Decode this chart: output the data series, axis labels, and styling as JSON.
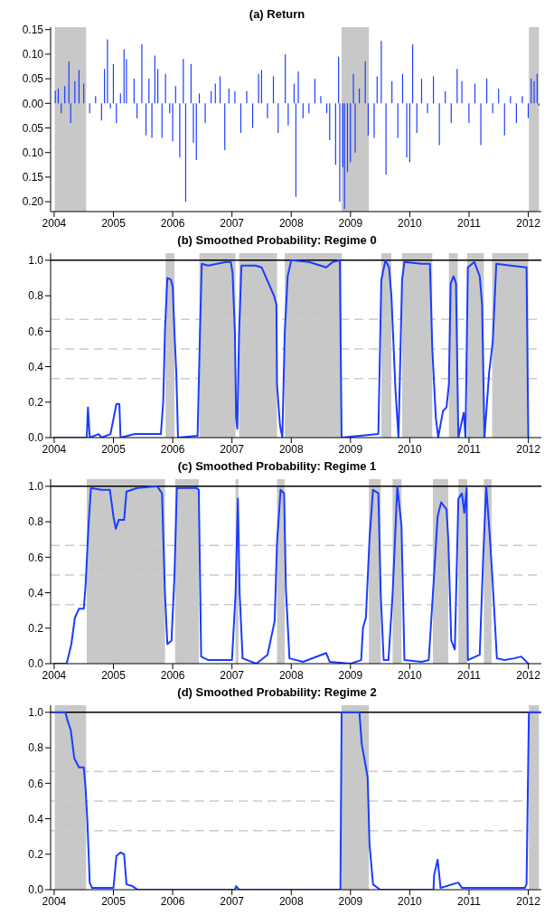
{
  "chart_data": [
    {
      "type": "bar",
      "title": "(a) Return",
      "color": "#1a3cff",
      "x": [
        2004.02,
        2004.07,
        2004.12,
        2004.18,
        2004.25,
        2004.28,
        2004.35,
        2004.42,
        2004.5,
        2004.6,
        2004.7,
        2004.72,
        2004.8,
        2004.85,
        2004.9,
        2004.95,
        2005.0,
        2005.05,
        2005.12,
        2005.18,
        2005.22,
        2005.3,
        2005.35,
        2005.4,
        2005.48,
        2005.55,
        2005.6,
        2005.65,
        2005.7,
        2005.75,
        2005.82,
        2005.88,
        2005.95,
        2006.0,
        2006.05,
        2006.12,
        2006.18,
        2006.22,
        2006.27,
        2006.31,
        2006.35,
        2006.4,
        2006.45,
        2006.55,
        2006.65,
        2006.72,
        2006.8,
        2006.88,
        2006.95,
        2007.05,
        2007.15,
        2007.25,
        2007.35,
        2007.45,
        2007.5,
        2007.6,
        2007.7,
        2007.78,
        2007.9,
        2007.95,
        2008.05,
        2008.08,
        2008.12,
        2008.2,
        2008.3,
        2008.4,
        2008.5,
        2008.6,
        2008.65,
        2008.75,
        2008.8,
        2008.82,
        2008.87,
        2008.9,
        2008.95,
        2009.0,
        2009.05,
        2009.08,
        2009.15,
        2009.25,
        2009.3,
        2009.4,
        2009.45,
        2009.52,
        2009.6,
        2009.7,
        2009.8,
        2009.88,
        2009.95,
        2010.0,
        2010.05,
        2010.12,
        2010.2,
        2010.3,
        2010.4,
        2010.5,
        2010.6,
        2010.7,
        2010.8,
        2010.88,
        2011.0,
        2011.1,
        2011.2,
        2011.3,
        2011.4,
        2011.5,
        2011.6,
        2011.7,
        2011.8,
        2011.9,
        2012.0,
        2012.05,
        2012.1,
        2012.15,
        2012.18
      ],
      "values": [
        0.026,
        0.03,
        -0.02,
        0.035,
        0.085,
        -0.04,
        0.045,
        0.068,
        0.04,
        -0.02,
        0.015,
        null,
        -0.035,
        0.07,
        0.13,
        -0.01,
        0.08,
        -0.04,
        0.02,
        0.11,
        0.09,
        null,
        0.05,
        -0.03,
        0.12,
        -0.065,
        0.05,
        -0.07,
        0.097,
        0.07,
        -0.07,
        0.06,
        -0.02,
        -0.077,
        0.035,
        -0.11,
        0.09,
        -0.2,
        null,
        0.08,
        -0.08,
        -0.115,
        0.02,
        -0.04,
        0.025,
        0.04,
        0.055,
        -0.095,
        0.03,
        0.025,
        -0.06,
        0.025,
        -0.05,
        0.06,
        0.068,
        -0.03,
        0.055,
        -0.06,
        0.1,
        -0.045,
        0.04,
        -0.19,
        0.065,
        -0.03,
        -0.02,
        0.05,
        0.015,
        -0.02,
        -0.075,
        -0.125,
        0.095,
        -0.2,
        -0.13,
        -0.215,
        -0.14,
        -0.12,
        0.06,
        -0.1,
        0.03,
        0.085,
        -0.065,
        -0.07,
        0.055,
        0.127,
        -0.145,
        0.045,
        -0.07,
        0.06,
        -0.11,
        -0.12,
        0.12,
        -0.06,
        0.05,
        -0.02,
        0.055,
        -0.085,
        0.025,
        -0.04,
        0.07,
        0.045,
        -0.04,
        0.04,
        -0.085,
        0.05,
        -0.02,
        0.03,
        -0.065,
        0.015,
        -0.04,
        0.015,
        -0.03,
        0.05,
        0.045,
        0.06,
        -0.005
      ],
      "xlim": [
        2003.94,
        2012.22
      ],
      "xticks": [
        2004,
        2005,
        2006,
        2007,
        2008,
        2009,
        2010,
        2011,
        2012
      ],
      "ylim": [
        -0.22,
        0.155
      ],
      "yticks": [
        {
          "value": 0.15,
          "label": "0.15"
        },
        {
          "value": 0.1,
          "label": "0.10"
        },
        {
          "value": 0.05,
          "label": "0.05"
        },
        {
          "value": 0,
          "label": "0.00"
        },
        {
          "value": -0.05,
          "label": "0.05"
        },
        {
          "value": -0.1,
          "label": "0.10"
        },
        {
          "value": -0.15,
          "label": "0.15"
        },
        {
          "value": -0.2,
          "label": "0.20"
        }
      ],
      "bands": [
        {
          "axis": "x",
          "from": 2004.01,
          "to": 2004.54,
          "color": "#c8c8c8"
        },
        {
          "axis": "x",
          "from": 2008.85,
          "to": 2009.31,
          "color": "#c8c8c8"
        },
        {
          "axis": "x",
          "from": 2012.01,
          "to": 2012.18,
          "color": "#c8c8c8"
        }
      ]
    },
    {
      "type": "line",
      "title": "(b) Smoothed Probability: Regime 0",
      "color": "#1a3cff",
      "x": [
        2004.0,
        2004.55,
        2004.57,
        2004.6,
        2004.75,
        2004.8,
        2004.95,
        2005.05,
        2005.1,
        2005.12,
        2005.36,
        2005.8,
        2005.84,
        2005.87,
        2005.91,
        2005.97,
        2006.0,
        2006.03,
        2006.06,
        2006.09,
        2006.42,
        2006.46,
        2006.49,
        2006.6,
        2006.9,
        2006.98,
        2007.01,
        2007.05,
        2007.07,
        2007.09,
        2007.12,
        2007.16,
        2007.4,
        2007.5,
        2007.71,
        2007.75,
        2007.76,
        2007.81,
        2007.85,
        2007.89,
        2007.94,
        2008.0,
        2008.3,
        2008.59,
        2008.7,
        2008.82,
        2008.85,
        2009.47,
        2009.52,
        2009.59,
        2009.65,
        2009.69,
        2009.76,
        2009.81,
        2009.87,
        2009.91,
        2010.2,
        2010.34,
        2010.38,
        2010.44,
        2010.48,
        2010.56,
        2010.62,
        2010.66,
        2010.69,
        2010.74,
        2010.78,
        2010.82,
        2010.91,
        2010.94,
        2010.98,
        2011.09,
        2011.18,
        2011.22,
        2011.26,
        2011.34,
        2011.4,
        2011.46,
        2011.7,
        2011.97,
        2012.0
      ],
      "values": [
        0,
        0,
        0.17,
        0,
        0.02,
        0,
        0.02,
        0.19,
        0.19,
        0,
        0.02,
        0.02,
        0.2,
        0.61,
        0.9,
        0.89,
        0.85,
        0.59,
        0.37,
        0,
        0.01,
        0.59,
        0.98,
        0.97,
        0.99,
        0.99,
        0.93,
        0.59,
        0.11,
        0.05,
        0.59,
        0.97,
        0.97,
        0.96,
        0.8,
        0.75,
        0.3,
        0.07,
        0,
        0.59,
        0.91,
        1.0,
        0.99,
        0.96,
        0.99,
        1.0,
        0,
        0.02,
        0.89,
        1.0,
        0.96,
        0.8,
        0.26,
        0,
        0.89,
        0.99,
        0.98,
        0.98,
        0.5,
        0.11,
        0,
        0.15,
        0.17,
        0.3,
        0.87,
        0.91,
        0.87,
        0,
        0.14,
        0,
        0.96,
        0.99,
        0.91,
        0.75,
        0,
        0.37,
        0.54,
        0.98,
        0.97,
        0.96,
        0
      ],
      "xlim": [
        2003.94,
        2012.22
      ],
      "xticks": [
        2004,
        2005,
        2006,
        2007,
        2008,
        2009,
        2010,
        2011,
        2012
      ],
      "ylim": [
        0,
        1.04
      ],
      "yticks": [
        {
          "value": 0,
          "label": "0.0"
        },
        {
          "value": 0.2,
          "label": "0.2"
        },
        {
          "value": 0.4,
          "label": "0.4"
        },
        {
          "value": 0.6,
          "label": "0.6"
        },
        {
          "value": 0.8,
          "label": "0.8"
        },
        {
          "value": 1,
          "label": "1.0"
        }
      ],
      "ref_lines": [
        {
          "axis": "y",
          "value": 1,
          "color": "#000000",
          "line_style": "solid"
        },
        {
          "axis": "y",
          "value": 0.667,
          "color": "#cccccc",
          "line_style": "dashed"
        },
        {
          "axis": "y",
          "value": 0.5,
          "color": "#cccccc",
          "line_style": "dashed"
        },
        {
          "axis": "y",
          "value": 0.333,
          "color": "#cccccc",
          "line_style": "dashed"
        }
      ],
      "bands": [
        {
          "axis": "x",
          "from": 2005.88,
          "to": 2006.03,
          "color": "#c8c8c8"
        },
        {
          "axis": "x",
          "from": 2006.45,
          "to": 2007.06,
          "color": "#c8c8c8"
        },
        {
          "axis": "x",
          "from": 2007.12,
          "to": 2007.76,
          "color": "#c8c8c8"
        },
        {
          "axis": "x",
          "from": 2007.89,
          "to": 2008.85,
          "color": "#c8c8c8"
        },
        {
          "axis": "x",
          "from": 2009.52,
          "to": 2009.69,
          "color": "#c8c8c8"
        },
        {
          "axis": "x",
          "from": 2009.87,
          "to": 2010.38,
          "color": "#c8c8c8"
        },
        {
          "axis": "x",
          "from": 2010.66,
          "to": 2010.81,
          "color": "#c8c8c8"
        },
        {
          "axis": "x",
          "from": 2010.97,
          "to": 2011.25,
          "color": "#c8c8c8"
        },
        {
          "axis": "x",
          "from": 2011.39,
          "to": 2012.0,
          "color": "#c8c8c8"
        }
      ]
    },
    {
      "type": "line",
      "title": "(c) Smoothed Probability: Regime 1",
      "color": "#1a3cff",
      "x": [
        2004.0,
        2004.21,
        2004.24,
        2004.29,
        2004.35,
        2004.42,
        2004.5,
        2004.53,
        2004.58,
        2004.62,
        2004.8,
        2004.94,
        2005.0,
        2005.04,
        2005.09,
        2005.18,
        2005.22,
        2005.4,
        2005.74,
        2005.82,
        2005.87,
        2005.91,
        2005.98,
        2006.03,
        2006.07,
        2006.4,
        2006.44,
        2006.48,
        2006.6,
        2006.8,
        2007.0,
        2007.06,
        2007.1,
        2007.13,
        2007.18,
        2007.41,
        2007.6,
        2007.72,
        2007.76,
        2007.82,
        2007.88,
        2007.91,
        2007.97,
        2008.2,
        2008.59,
        2008.65,
        2009.0,
        2009.18,
        2009.21,
        2009.26,
        2009.32,
        2009.38,
        2009.47,
        2009.51,
        2009.56,
        2009.64,
        2009.71,
        2009.79,
        2009.86,
        2009.91,
        2010.2,
        2010.32,
        2010.41,
        2010.47,
        2010.53,
        2010.62,
        2010.65,
        2010.7,
        2010.76,
        2010.82,
        2010.88,
        2010.92,
        2010.96,
        2010.98,
        2011.18,
        2011.24,
        2011.29,
        2011.35,
        2011.4,
        2011.47,
        2011.6,
        2011.76,
        2011.88,
        2012.0
      ],
      "values": [
        0,
        0,
        0.04,
        0.11,
        0.26,
        0.31,
        0.31,
        0.44,
        0.78,
        0.99,
        0.98,
        0.98,
        0.83,
        0.76,
        0.81,
        0.81,
        0.97,
        0.99,
        1.0,
        0.96,
        0.39,
        0.11,
        0.13,
        0.5,
        0.99,
        0.99,
        0.98,
        0.04,
        0.02,
        0.02,
        0.02,
        0.39,
        0.93,
        0.39,
        0.03,
        0,
        0.05,
        0.24,
        0.68,
        0.98,
        0.96,
        0.42,
        0.03,
        0.01,
        0.06,
        0.01,
        0,
        0.02,
        0.2,
        0.26,
        0.7,
        0.98,
        0.96,
        0.39,
        0.02,
        0.02,
        0.39,
        1.0,
        0.78,
        0.02,
        0.01,
        0.02,
        0.5,
        0.83,
        0.91,
        0.87,
        0.7,
        0.13,
        0.08,
        0.93,
        0.96,
        0.85,
        0.99,
        0.02,
        0.05,
        0.61,
        1.0,
        0.72,
        0.45,
        0.03,
        0.02,
        0.03,
        0.04,
        0
      ],
      "xlim": [
        2003.94,
        2012.22
      ],
      "xticks": [
        2004,
        2005,
        2006,
        2007,
        2008,
        2009,
        2010,
        2011,
        2012
      ],
      "ylim": [
        0,
        1.04
      ],
      "yticks": [
        {
          "value": 0,
          "label": "0.0"
        },
        {
          "value": 0.2,
          "label": "0.2"
        },
        {
          "value": 0.4,
          "label": "0.4"
        },
        {
          "value": 0.6,
          "label": "0.6"
        },
        {
          "value": 0.8,
          "label": "0.8"
        },
        {
          "value": 1,
          "label": "1.0"
        }
      ],
      "ref_lines": [
        {
          "axis": "y",
          "value": 1,
          "color": "#000000",
          "line_style": "solid"
        },
        {
          "axis": "y",
          "value": 0.667,
          "color": "#cccccc",
          "line_style": "dashed"
        },
        {
          "axis": "y",
          "value": 0.5,
          "color": "#cccccc",
          "line_style": "dashed"
        },
        {
          "axis": "y",
          "value": 0.333,
          "color": "#cccccc",
          "line_style": "dashed"
        }
      ],
      "bands": [
        {
          "axis": "x",
          "from": 2004.55,
          "to": 2005.87,
          "color": "#c8c8c8"
        },
        {
          "axis": "x",
          "from": 2006.04,
          "to": 2006.44,
          "color": "#c8c8c8"
        },
        {
          "axis": "x",
          "from": 2007.06,
          "to": 2007.11,
          "color": "#c8c8c8"
        },
        {
          "axis": "x",
          "from": 2007.76,
          "to": 2007.89,
          "color": "#c8c8c8"
        },
        {
          "axis": "x",
          "from": 2009.31,
          "to": 2009.51,
          "color": "#c8c8c8"
        },
        {
          "axis": "x",
          "from": 2009.71,
          "to": 2009.86,
          "color": "#c8c8c8"
        },
        {
          "axis": "x",
          "from": 2010.39,
          "to": 2010.65,
          "color": "#c8c8c8"
        },
        {
          "axis": "x",
          "from": 2010.82,
          "to": 2010.97,
          "color": "#c8c8c8"
        },
        {
          "axis": "x",
          "from": 2011.25,
          "to": 2011.38,
          "color": "#c8c8c8"
        }
      ]
    },
    {
      "type": "line",
      "title": "(d) Smoothed Probability: Regime 2",
      "color": "#1a3cff",
      "x": [
        2004.0,
        2004.19,
        2004.22,
        2004.28,
        2004.34,
        2004.42,
        2004.5,
        2004.53,
        2004.56,
        2004.6,
        2004.64,
        2004.9,
        2005.0,
        2005.05,
        2005.12,
        2005.18,
        2005.22,
        2005.32,
        2005.41,
        2007.05,
        2007.07,
        2007.12,
        2008.83,
        2008.85,
        2009.15,
        2009.19,
        2009.26,
        2009.29,
        2009.32,
        2009.38,
        2009.5,
        2010.4,
        2010.41,
        2010.47,
        2010.52,
        2010.82,
        2010.88,
        2011.3,
        2011.94,
        2011.97,
        2012.01,
        2012.2
      ],
      "values": [
        1.0,
        1.0,
        0.96,
        0.9,
        0.74,
        0.69,
        0.69,
        0.57,
        0.39,
        0.04,
        0.01,
        0.01,
        0.01,
        0.19,
        0.21,
        0.2,
        0.03,
        0.02,
        0,
        0,
        0.02,
        0,
        0,
        1.0,
        1.0,
        0.82,
        0.69,
        0.63,
        0.26,
        0.03,
        0,
        0,
        0.08,
        0.17,
        0.01,
        0.04,
        0.01,
        0.01,
        0.01,
        0.03,
        1.0,
        1.0
      ],
      "xlim": [
        2003.94,
        2012.22
      ],
      "xticks": [
        2004,
        2005,
        2006,
        2007,
        2008,
        2009,
        2010,
        2011,
        2012
      ],
      "ylim": [
        0,
        1.04
      ],
      "yticks": [
        {
          "value": 0,
          "label": "0.0"
        },
        {
          "value": 0.2,
          "label": "0.2"
        },
        {
          "value": 0.4,
          "label": "0.4"
        },
        {
          "value": 0.6,
          "label": "0.6"
        },
        {
          "value": 0.8,
          "label": "0.8"
        },
        {
          "value": 1,
          "label": "1.0"
        }
      ],
      "ref_lines": [
        {
          "axis": "y",
          "value": 1,
          "color": "#000000",
          "line_style": "solid"
        },
        {
          "axis": "y",
          "value": 0.667,
          "color": "#cccccc",
          "line_style": "dashed"
        },
        {
          "axis": "y",
          "value": 0.5,
          "color": "#cccccc",
          "line_style": "dashed"
        },
        {
          "axis": "y",
          "value": 0.333,
          "color": "#cccccc",
          "line_style": "dashed"
        }
      ],
      "bands": [
        {
          "axis": "x",
          "from": 2004.01,
          "to": 2004.54,
          "color": "#c8c8c8"
        },
        {
          "axis": "x",
          "from": 2008.85,
          "to": 2009.31,
          "color": "#c8c8c8"
        },
        {
          "axis": "x",
          "from": 2012.01,
          "to": 2012.18,
          "color": "#c8c8c8"
        }
      ]
    }
  ]
}
